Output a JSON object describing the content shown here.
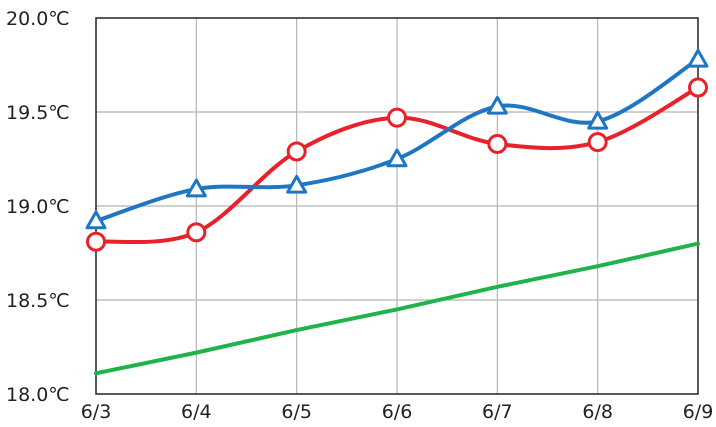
{
  "chart_data": {
    "type": "line",
    "title": "",
    "xlabel": "",
    "ylabel": "",
    "categories": [
      "6/3",
      "6/4",
      "6/5",
      "6/6",
      "6/7",
      "6/8",
      "6/9"
    ],
    "y_ticks": [
      "20.0℃",
      "19.5℃",
      "19.0℃",
      "18.5℃",
      "18.0℃"
    ],
    "ylim": [
      18.0,
      20.0
    ],
    "grid": true,
    "series": [
      {
        "values": [
          18.92,
          19.09,
          19.11,
          19.25,
          19.53,
          19.45,
          19.78
        ],
        "color": "#1f77c4",
        "marker": "triangle",
        "smooth": true
      },
      {
        "values": [
          18.81,
          18.86,
          19.29,
          19.47,
          19.33,
          19.34,
          19.63
        ],
        "color": "#e8222a",
        "marker": "circle",
        "smooth": true
      },
      {
        "values": [
          18.11,
          18.22,
          18.34,
          18.45,
          18.57,
          18.68,
          18.8
        ],
        "color": "#1fb34a",
        "marker": "none",
        "smooth": false
      }
    ]
  }
}
